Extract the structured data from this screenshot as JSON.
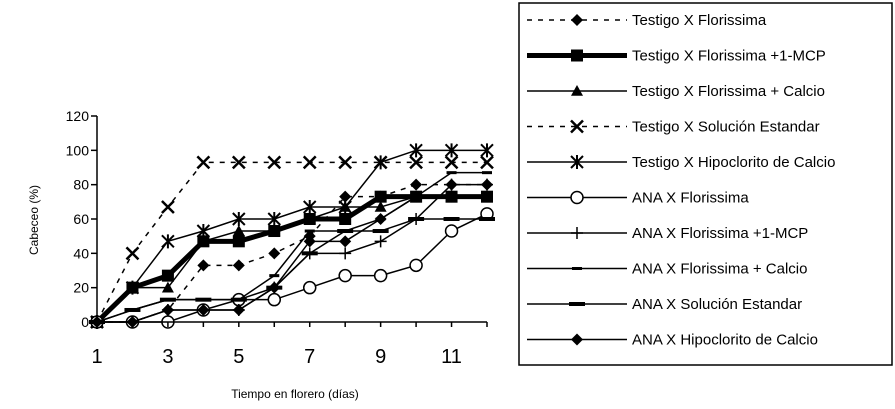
{
  "chart_data": {
    "type": "line",
    "title": "",
    "xlabel": "Tiempo en  florero (días)",
    "ylabel": "Cabeceo  (%)",
    "xlim": [
      1,
      12
    ],
    "ylim": [
      0,
      120
    ],
    "x_ticks": [
      1,
      3,
      5,
      7,
      9,
      11
    ],
    "y_ticks": [
      0,
      20,
      40,
      60,
      80,
      100,
      120
    ],
    "grid": false,
    "legend_position": "right",
    "x": [
      1,
      2,
      3,
      4,
      5,
      6,
      7,
      8,
      9,
      10,
      11,
      12
    ],
    "series": [
      {
        "name": "Testigo X Florissima",
        "marker": "diamond",
        "style": "dashed",
        "values": [
          0,
          0,
          7,
          33,
          33,
          40,
          50,
          73,
          73,
          80,
          80,
          80
        ]
      },
      {
        "name": "Testigo X Florissima +1-MCP",
        "marker": "square",
        "style": "thick",
        "values": [
          0,
          20,
          27,
          47,
          47,
          53,
          60,
          60,
          73,
          73,
          73,
          73
        ]
      },
      {
        "name": "Testigo X Florissima + Calcio",
        "marker": "triangle",
        "style": "solid",
        "values": [
          0,
          20,
          20,
          47,
          53,
          53,
          60,
          67,
          67,
          73,
          73,
          73
        ]
      },
      {
        "name": "Testigo X Solución Estandar",
        "marker": "x",
        "style": "dashed",
        "values": [
          0,
          40,
          67,
          93,
          93,
          93,
          93,
          93,
          93,
          93,
          93,
          93
        ]
      },
      {
        "name": "Testigo X Hipoclorito de Calcio",
        "marker": "star",
        "style": "solid",
        "values": [
          0,
          20,
          47,
          53,
          60,
          60,
          67,
          67,
          93,
          100,
          100,
          100
        ]
      },
      {
        "name": "ANA X Florissima",
        "marker": "circle",
        "style": "solid",
        "values": [
          0,
          0,
          0,
          7,
          13,
          13,
          20,
          27,
          27,
          33,
          53,
          63
        ]
      },
      {
        "name": "ANA X Florissima +1-MCP",
        "marker": "plus",
        "style": "solid",
        "values": [
          0,
          0,
          7,
          7,
          7,
          20,
          40,
          40,
          47,
          60,
          80,
          80
        ]
      },
      {
        "name": "ANA X Florissima + Calcio",
        "marker": "dash",
        "style": "solid",
        "values": [
          0,
          7,
          13,
          13,
          13,
          27,
          53,
          53,
          60,
          73,
          87,
          87
        ]
      },
      {
        "name": "ANA X Solución Estandar",
        "marker": "bar",
        "style": "solid",
        "values": [
          0,
          7,
          13,
          13,
          13,
          20,
          40,
          53,
          53,
          60,
          60,
          60
        ]
      },
      {
        "name": "ANA X Hipoclorito de Calcio",
        "marker": "diamond",
        "style": "solid",
        "values": [
          0,
          0,
          7,
          7,
          7,
          20,
          47,
          47,
          60,
          73,
          73,
          73
        ]
      }
    ]
  }
}
